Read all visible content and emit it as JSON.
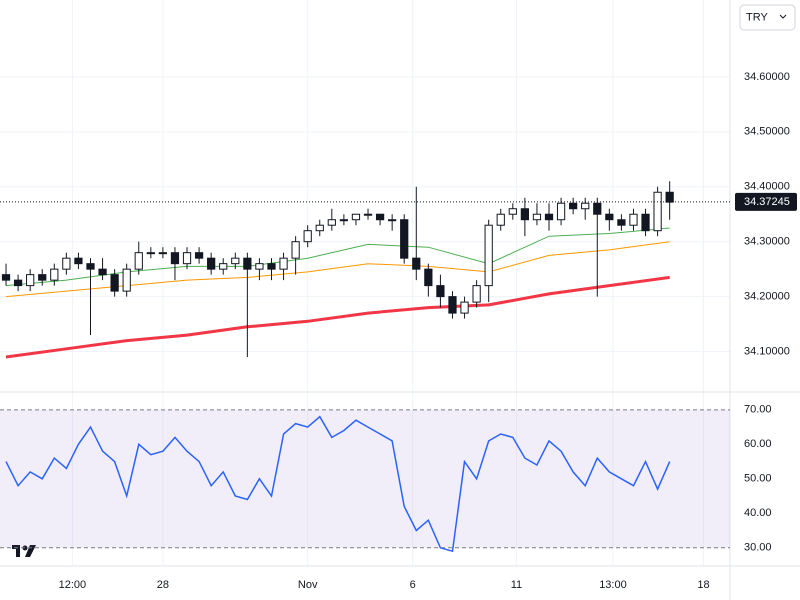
{
  "currency": "TRY",
  "chart_data": [
    {
      "type": "candlestick",
      "open": [
        34.24,
        34.23,
        34.22,
        34.24,
        34.23,
        34.25,
        34.27,
        34.26,
        34.25,
        34.24,
        34.21,
        34.25,
        34.28,
        34.28,
        34.28,
        34.26,
        34.28,
        34.27,
        34.25,
        34.26,
        34.27,
        34.25,
        34.26,
        34.25,
        34.27,
        34.3,
        34.32,
        34.33,
        34.34,
        34.34,
        34.35,
        34.35,
        34.34,
        34.34,
        34.27,
        34.25,
        34.22,
        34.2,
        34.17,
        34.19,
        34.22,
        34.33,
        34.35,
        34.36,
        34.34,
        34.35,
        34.34,
        34.37,
        34.36,
        34.37,
        34.35,
        34.34,
        34.33,
        34.35,
        34.32,
        34.39
      ],
      "high": [
        34.26,
        34.24,
        34.25,
        34.25,
        34.26,
        34.28,
        34.28,
        34.27,
        34.27,
        34.25,
        34.26,
        34.3,
        34.29,
        34.29,
        34.29,
        34.29,
        34.29,
        34.28,
        34.27,
        34.28,
        34.28,
        34.27,
        34.27,
        34.28,
        34.31,
        34.33,
        34.34,
        34.36,
        34.35,
        34.35,
        34.36,
        34.35,
        34.35,
        34.35,
        34.4,
        34.26,
        34.24,
        34.21,
        34.2,
        34.23,
        34.34,
        34.36,
        34.37,
        34.38,
        34.37,
        34.37,
        34.38,
        34.38,
        34.38,
        34.38,
        34.36,
        34.35,
        34.36,
        34.36,
        34.4,
        34.41
      ],
      "low": [
        34.22,
        34.21,
        34.21,
        34.22,
        34.22,
        34.24,
        34.25,
        34.13,
        34.23,
        34.2,
        34.2,
        34.24,
        34.27,
        34.27,
        34.23,
        34.25,
        34.26,
        34.24,
        34.24,
        34.25,
        34.09,
        34.23,
        34.23,
        34.23,
        34.24,
        34.29,
        34.31,
        34.32,
        34.33,
        34.33,
        34.34,
        34.33,
        34.32,
        34.26,
        34.23,
        34.2,
        34.18,
        34.16,
        34.16,
        34.18,
        34.19,
        34.32,
        34.34,
        34.31,
        34.33,
        34.32,
        34.33,
        34.35,
        34.34,
        34.2,
        34.32,
        34.32,
        34.32,
        34.31,
        34.31,
        34.34
      ],
      "close": [
        34.23,
        34.22,
        34.24,
        34.23,
        34.25,
        34.27,
        34.26,
        34.25,
        34.24,
        34.21,
        34.25,
        34.28,
        34.28,
        34.28,
        34.26,
        34.28,
        34.27,
        34.25,
        34.26,
        34.27,
        34.25,
        34.26,
        34.25,
        34.27,
        34.3,
        34.32,
        34.33,
        34.34,
        34.34,
        34.35,
        34.35,
        34.34,
        34.34,
        34.27,
        34.25,
        34.22,
        34.2,
        34.17,
        34.19,
        34.22,
        34.33,
        34.35,
        34.36,
        34.34,
        34.35,
        34.34,
        34.37,
        34.36,
        34.37,
        34.35,
        34.34,
        34.33,
        34.35,
        34.32,
        34.39,
        34.372
      ],
      "series": [
        {
          "color": "#f23645",
          "x": [
            0,
            5,
            10,
            15,
            20,
            25,
            30,
            35,
            40,
            45,
            50,
            55
          ],
          "values": [
            34.09,
            34.105,
            34.12,
            34.13,
            34.145,
            34.155,
            34.17,
            34.18,
            34.185,
            34.205,
            34.22,
            34.235
          ]
        },
        {
          "color": "#ff9800",
          "x": [
            0,
            5,
            10,
            15,
            20,
            25,
            30,
            35,
            40,
            45,
            50,
            55
          ],
          "values": [
            34.2,
            34.21,
            34.22,
            34.23,
            34.235,
            34.245,
            34.26,
            34.255,
            34.245,
            34.275,
            34.285,
            34.3
          ]
        },
        {
          "color": "#4caf50",
          "x": [
            0,
            5,
            10,
            15,
            20,
            25,
            30,
            35,
            40,
            45,
            50,
            55
          ],
          "values": [
            34.22,
            34.23,
            34.245,
            34.255,
            34.255,
            34.27,
            34.295,
            34.29,
            34.26,
            34.31,
            34.315,
            34.325
          ]
        }
      ],
      "last_price": {
        "value": 34.37245,
        "label": "34.37245"
      },
      "xlim": [
        -0.5,
        60
      ],
      "xticks": [
        {
          "value": 5.5,
          "label": "12:00"
        },
        {
          "value": 13,
          "label": "28"
        },
        {
          "value": 25,
          "label": "Nov"
        },
        {
          "value": 33.7,
          "label": "6"
        },
        {
          "value": 42.3,
          "label": "11"
        },
        {
          "value": 50.3,
          "label": "13:00"
        },
        {
          "value": 57.8,
          "label": "18"
        }
      ],
      "ylim": [
        34.03,
        34.74
      ],
      "yticks": [
        {
          "value": 34.1,
          "label": "34.10000"
        },
        {
          "value": 34.2,
          "label": "34.20000"
        },
        {
          "value": 34.3,
          "label": "34.30000"
        },
        {
          "value": 34.4,
          "label": "34.40000"
        },
        {
          "value": 34.5,
          "label": "34.50000"
        },
        {
          "value": 34.6,
          "label": "34.60000"
        }
      ],
      "grid": true
    },
    {
      "type": "line",
      "color": "#2962ff",
      "values": [
        55,
        48,
        52,
        50,
        56,
        53,
        60,
        65,
        58,
        55,
        45,
        60,
        57,
        58,
        62,
        58,
        55,
        48,
        52,
        45,
        44,
        50,
        45,
        63,
        66,
        65,
        68,
        62,
        64,
        67,
        65,
        63,
        61,
        42,
        35,
        38,
        30,
        29,
        55,
        50,
        61,
        63,
        62,
        56,
        54,
        61,
        58,
        52,
        48,
        56,
        52,
        50,
        48,
        55,
        47,
        55
      ],
      "ylim": [
        25,
        74.3
      ],
      "yticks": [
        {
          "value": 30,
          "label": "30.00"
        },
        {
          "value": 40,
          "label": "40.00"
        },
        {
          "value": 50,
          "label": "50.00"
        },
        {
          "value": 60,
          "label": "60.00"
        },
        {
          "value": 70,
          "label": "70.00"
        }
      ],
      "band": [
        30,
        70
      ]
    }
  ]
}
